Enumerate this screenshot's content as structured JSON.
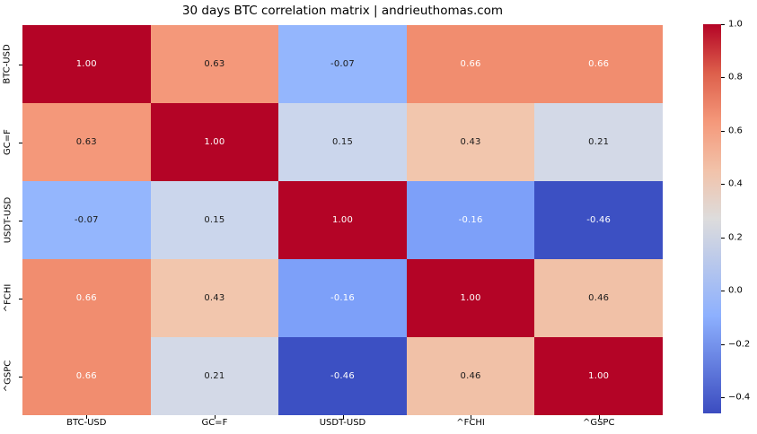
{
  "title": "30 days BTC correlation matrix | andrieuthomas.com",
  "chart_data": {
    "type": "heatmap",
    "title": "30 days BTC correlation matrix | andrieuthomas.com",
    "categories": [
      "BTC-USD",
      "GC=F",
      "USDT-USD",
      "^FCHI",
      "^GSPC"
    ],
    "matrix": [
      [
        1.0,
        0.63,
        -0.07,
        0.66,
        0.66
      ],
      [
        0.63,
        1.0,
        0.15,
        0.43,
        0.21
      ],
      [
        -0.07,
        0.15,
        1.0,
        -0.16,
        -0.46
      ],
      [
        0.66,
        0.43,
        -0.16,
        1.0,
        0.46
      ],
      [
        0.66,
        0.21,
        -0.46,
        0.46,
        1.0
      ]
    ],
    "cell_labels": [
      [
        "1.00",
        "0.63",
        "-0.07",
        "0.66",
        "0.66"
      ],
      [
        "0.63",
        "1.00",
        "0.15",
        "0.43",
        "0.21"
      ],
      [
        "-0.07",
        "0.15",
        "1.00",
        "-0.16",
        "-0.46"
      ],
      [
        "0.66",
        "0.43",
        "-0.16",
        "1.00",
        "0.46"
      ],
      [
        "0.66",
        "0.21",
        "-0.46",
        "0.46",
        "1.00"
      ]
    ],
    "cell_colors": [
      [
        "#b40426",
        "#f4987a",
        "#94b6fd",
        "#f18d6f",
        "#f18d6f"
      ],
      [
        "#f4987a",
        "#b40426",
        "#cbd6ec",
        "#f2c6ad",
        "#d3d9e7"
      ],
      [
        "#94b6fd",
        "#cbd6ec",
        "#b40426",
        "#7da0f9",
        "#3c50c3"
      ],
      [
        "#f18d6f",
        "#f2c6ad",
        "#7da0f9",
        "#b40426",
        "#f1c1a7"
      ],
      [
        "#f18d6f",
        "#d3d9e7",
        "#3c50c3",
        "#f1c1a7",
        "#b40426"
      ]
    ],
    "cell_text_colors": [
      [
        "#ffffff",
        "#1a1a1a",
        "#1a1a1a",
        "#ffffff",
        "#ffffff"
      ],
      [
        "#1a1a1a",
        "#ffffff",
        "#1a1a1a",
        "#1a1a1a",
        "#1a1a1a"
      ],
      [
        "#1a1a1a",
        "#1a1a1a",
        "#ffffff",
        "#ffffff",
        "#ffffff"
      ],
      [
        "#ffffff",
        "#1a1a1a",
        "#ffffff",
        "#ffffff",
        "#1a1a1a"
      ],
      [
        "#ffffff",
        "#1a1a1a",
        "#ffffff",
        "#1a1a1a",
        "#ffffff"
      ]
    ],
    "colormap": "coolwarm",
    "vmin": -0.46,
    "vmax": 1.0,
    "grid": false,
    "legend_position": "colorbar-right",
    "colorbar_ticks": [
      {
        "value": 1.0,
        "label": "1.0"
      },
      {
        "value": 0.8,
        "label": "0.8"
      },
      {
        "value": 0.6,
        "label": "0.6"
      },
      {
        "value": 0.4,
        "label": "0.4"
      },
      {
        "value": 0.2,
        "label": "0.2"
      },
      {
        "value": 0.0,
        "label": "0.0"
      },
      {
        "value": -0.2,
        "label": "−0.2"
      },
      {
        "value": -0.4,
        "label": "−0.4"
      }
    ],
    "colorbar_gradient": [
      "#b40426 0%",
      "#dd5f4b 12.5%",
      "#f4987a 25%",
      "#f2c2a9 37.5%",
      "#dddcdc 50%",
      "#b5c6ed 62.5%",
      "#8db0fe 75%",
      "#647edf 87.5%",
      "#3b4cc0 100%"
    ]
  }
}
